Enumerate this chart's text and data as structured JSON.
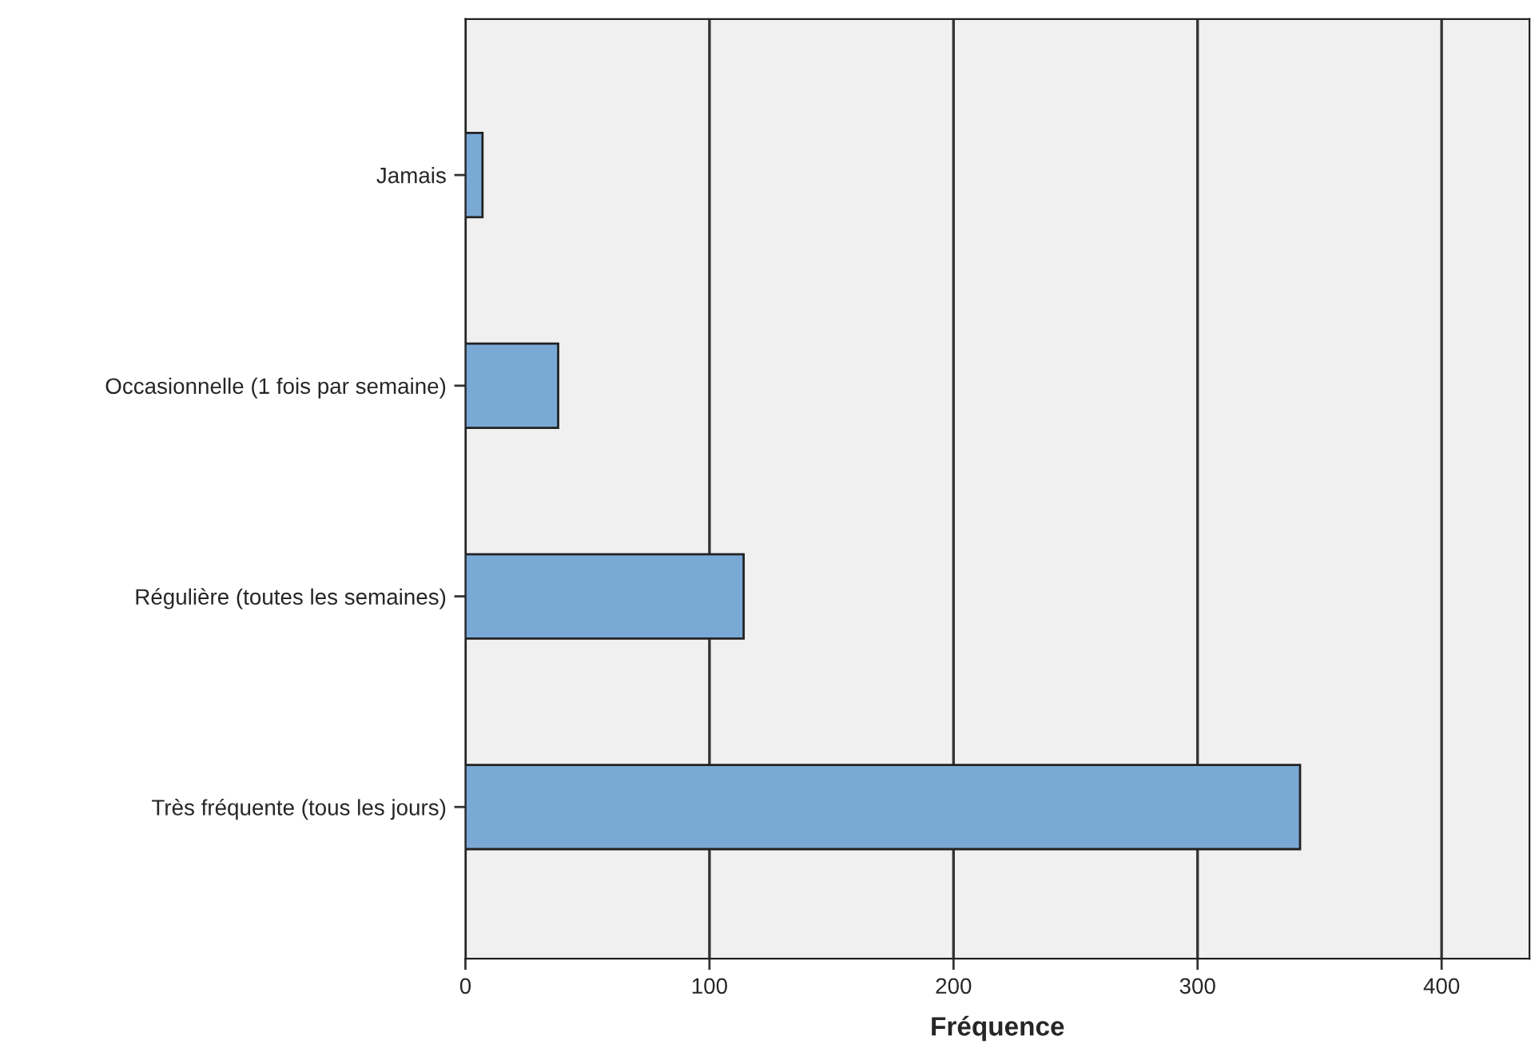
{
  "chart_data": {
    "type": "bar",
    "orientation": "horizontal",
    "xlabel": "Fréquence",
    "categories": [
      "Jamais",
      "Occasionnelle (1 fois par semaine)",
      "Régulière (toutes les semaines)",
      "Très fréquente (tous les jours)"
    ],
    "values": [
      7,
      38,
      114,
      342
    ],
    "color": "#7aa9d6",
    "xlim": [
      0,
      436
    ],
    "xticks": [
      0,
      100,
      200,
      300,
      400
    ],
    "grid": "x"
  }
}
